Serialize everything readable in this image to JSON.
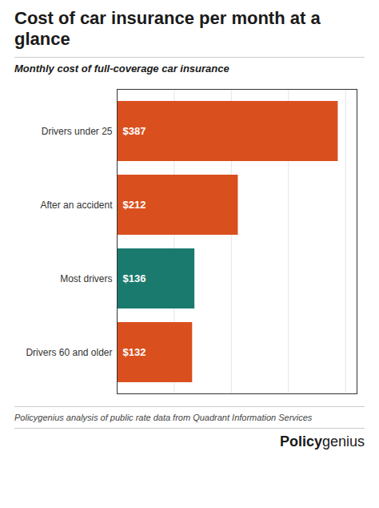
{
  "chart_data": {
    "type": "bar",
    "orientation": "horizontal",
    "title": "Cost of car insurance per month at a glance",
    "subtitle": "Monthly cost of full-coverage car insurance",
    "categories": [
      "Drivers under 25",
      "After an accident",
      "Most drivers",
      "Drivers 60 and older"
    ],
    "values": [
      387,
      212,
      136,
      132
    ],
    "value_labels": [
      "$387",
      "$212",
      "$136",
      "$132"
    ],
    "data_labels": true,
    "colors": [
      "#D94F1E",
      "#D94F1E",
      "#1A7A6E",
      "#D94F1E"
    ],
    "xlim": [
      0,
      420
    ],
    "xticks": [
      100,
      200,
      300,
      400
    ],
    "grid": true,
    "tick_labels": "y",
    "footnote": "Policygenius analysis of public rate data from Quadrant Information Services",
    "annotations": [
      "Policy",
      "genius"
    ]
  }
}
